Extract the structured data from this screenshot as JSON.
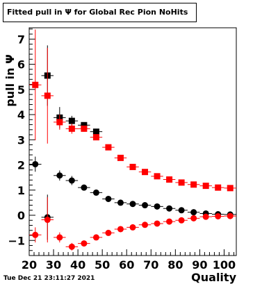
{
  "header": {
    "title": "Fitted pull in Ψ for Global Rec Pion NoHits",
    "timestamp": "Tue Dec 21 23:11:27 2021"
  },
  "chart_data": {
    "type": "scatter",
    "title": "Fitted pull in Ψ for Global Rec Pion NoHits",
    "xlabel": "Quality",
    "ylabel": "pull in Ψ",
    "xlim": [
      20,
      105
    ],
    "ylim": [
      -1.6,
      7.45
    ],
    "x_ticks": [
      20,
      30,
      40,
      50,
      60,
      70,
      80,
      90,
      100
    ],
    "y_ticks": [
      -1,
      0,
      1,
      2,
      3,
      4,
      5,
      6,
      7
    ],
    "grid": false,
    "legend": "none",
    "x": [
      22.5,
      27.5,
      32.5,
      37.5,
      42.5,
      47.5,
      52.5,
      57.5,
      62.5,
      67.5,
      72.5,
      77.5,
      82.5,
      87.5,
      92.5,
      97.5,
      102.5
    ],
    "series": [
      {
        "color": "#000000",
        "marker": "square",
        "values": [
          null,
          5.55,
          3.88,
          3.75,
          3.58,
          3.32,
          null,
          null,
          null,
          null,
          null,
          null,
          null,
          null,
          null,
          null,
          null
        ],
        "errors": [
          null,
          1.2,
          0.42,
          0.2,
          0.1,
          0.08,
          null,
          null,
          null,
          null,
          null,
          null,
          null,
          null,
          null,
          null,
          null
        ]
      },
      {
        "color": "#ff0000",
        "marker": "square",
        "values": [
          5.18,
          4.75,
          3.7,
          3.44,
          3.44,
          3.1,
          2.7,
          2.28,
          1.92,
          1.72,
          1.55,
          1.42,
          1.3,
          1.22,
          1.17,
          1.1,
          1.08
        ],
        "errors": [
          2.2,
          1.9,
          0.3,
          0.2,
          0.12,
          0.1,
          0.07,
          0.07,
          0.06,
          0.06,
          0.05,
          0.05,
          0.05,
          0.05,
          0.05,
          0.05,
          0.05
        ]
      },
      {
        "color": "#000000",
        "marker": "circle",
        "values": [
          2.03,
          -0.08,
          1.58,
          1.38,
          1.1,
          0.9,
          0.65,
          0.5,
          0.45,
          0.4,
          0.35,
          0.27,
          0.2,
          0.12,
          0.07,
          0.04,
          0.03
        ],
        "errors": [
          0.3,
          0.9,
          0.2,
          0.18,
          0.1,
          0.08,
          0.06,
          0.05,
          0.05,
          0.05,
          0.05,
          0.05,
          0.05,
          0.05,
          0.05,
          0.05,
          0.05
        ]
      },
      {
        "color": "#ff0000",
        "marker": "circle",
        "values": [
          -0.78,
          -0.18,
          -0.88,
          -1.25,
          -1.12,
          -0.88,
          -0.7,
          -0.55,
          -0.48,
          -0.38,
          -0.33,
          -0.25,
          -0.2,
          -0.12,
          -0.06,
          -0.04,
          -0.03
        ],
        "errors": [
          0.3,
          0.9,
          0.2,
          0.15,
          0.1,
          0.08,
          0.06,
          0.05,
          0.05,
          0.05,
          0.05,
          0.05,
          0.05,
          0.05,
          0.05,
          0.05,
          0.05
        ]
      }
    ]
  }
}
